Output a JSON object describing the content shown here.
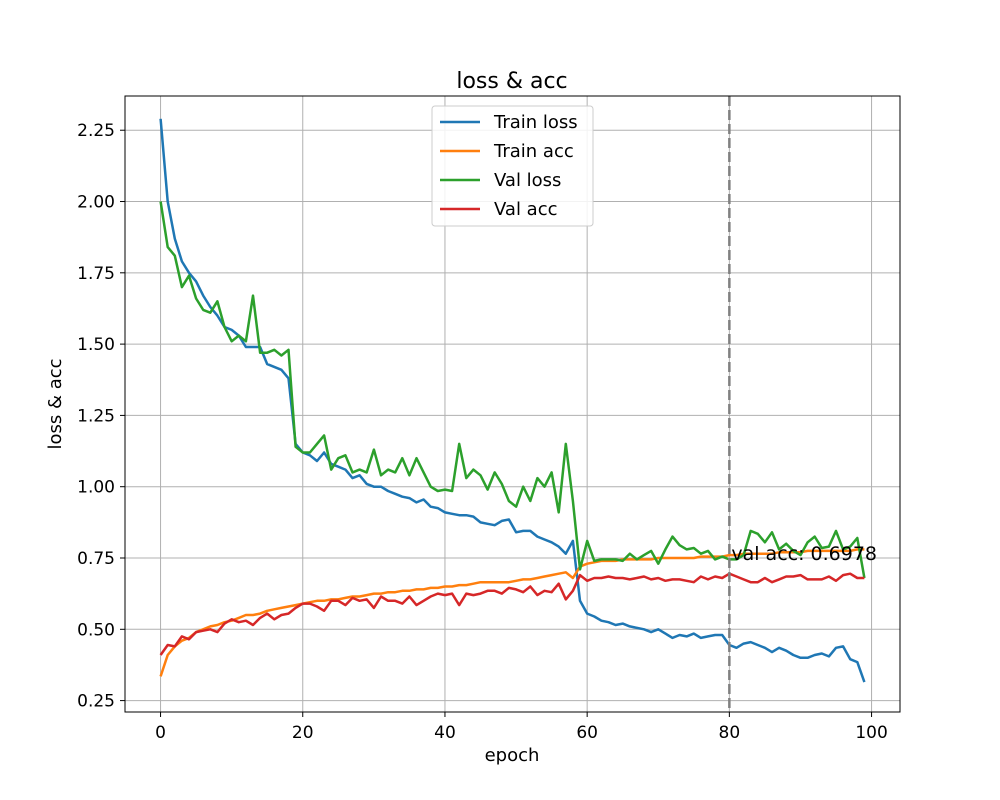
{
  "chart_data": {
    "type": "line",
    "title": "loss & acc",
    "xlabel": "epoch",
    "ylabel": "loss & acc",
    "xlim": [
      -5,
      104
    ],
    "ylim": [
      0.21,
      2.37
    ],
    "xticks": [
      0,
      20,
      40,
      60,
      80,
      100
    ],
    "xtick_labels": [
      "0",
      "20",
      "40",
      "60",
      "80",
      "100"
    ],
    "yticks": [
      0.25,
      0.5,
      0.75,
      1.0,
      1.25,
      1.5,
      1.75,
      2.0,
      2.25
    ],
    "ytick_labels": [
      "0.25",
      "0.50",
      "0.75",
      "1.00",
      "1.25",
      "1.50",
      "1.75",
      "2.00",
      "2.25"
    ],
    "grid": true,
    "legend_position": "top-center",
    "vline": {
      "x": 80,
      "color": "#808080",
      "style": "dashed"
    },
    "annotation": {
      "text": "val acc: 0.6978",
      "x": 80,
      "y": 0.75
    },
    "series": [
      {
        "name": "Train loss",
        "color": "#1f77b4",
        "values": [
          2.29,
          2.0,
          1.87,
          1.79,
          1.75,
          1.72,
          1.67,
          1.63,
          1.6,
          1.56,
          1.55,
          1.53,
          1.49,
          1.49,
          1.49,
          1.43,
          1.42,
          1.41,
          1.38,
          1.15,
          1.12,
          1.11,
          1.09,
          1.12,
          1.08,
          1.07,
          1.06,
          1.03,
          1.04,
          1.01,
          1.0,
          1.0,
          0.985,
          0.975,
          0.965,
          0.96,
          0.945,
          0.955,
          0.93,
          0.925,
          0.91,
          0.905,
          0.9,
          0.9,
          0.895,
          0.875,
          0.87,
          0.865,
          0.88,
          0.885,
          0.84,
          0.845,
          0.845,
          0.825,
          0.815,
          0.805,
          0.79,
          0.765,
          0.81,
          0.6,
          0.555,
          0.545,
          0.53,
          0.525,
          0.515,
          0.52,
          0.51,
          0.505,
          0.5,
          0.49,
          0.5,
          0.485,
          0.47,
          0.48,
          0.475,
          0.485,
          0.47,
          0.475,
          0.48,
          0.48,
          0.445,
          0.435,
          0.45,
          0.455,
          0.445,
          0.435,
          0.42,
          0.435,
          0.425,
          0.41,
          0.4,
          0.4,
          0.41,
          0.415,
          0.405,
          0.435,
          0.44,
          0.395,
          0.385,
          0.315
        ]
      },
      {
        "name": "Train acc",
        "color": "#ff7f0e",
        "values": [
          0.335,
          0.41,
          0.44,
          0.46,
          0.47,
          0.49,
          0.5,
          0.51,
          0.515,
          0.525,
          0.53,
          0.54,
          0.55,
          0.55,
          0.555,
          0.565,
          0.57,
          0.575,
          0.58,
          0.585,
          0.59,
          0.595,
          0.6,
          0.6,
          0.605,
          0.605,
          0.61,
          0.615,
          0.615,
          0.62,
          0.625,
          0.625,
          0.63,
          0.63,
          0.635,
          0.635,
          0.64,
          0.64,
          0.645,
          0.645,
          0.65,
          0.65,
          0.655,
          0.655,
          0.66,
          0.665,
          0.665,
          0.665,
          0.665,
          0.665,
          0.67,
          0.675,
          0.675,
          0.68,
          0.685,
          0.69,
          0.695,
          0.7,
          0.68,
          0.72,
          0.73,
          0.735,
          0.74,
          0.74,
          0.74,
          0.745,
          0.745,
          0.745,
          0.745,
          0.745,
          0.75,
          0.75,
          0.75,
          0.75,
          0.75,
          0.75,
          0.755,
          0.755,
          0.755,
          0.755,
          0.76,
          0.76,
          0.765,
          0.765,
          0.765,
          0.765,
          0.765,
          0.77,
          0.77,
          0.77,
          0.77,
          0.775,
          0.775,
          0.775,
          0.775,
          0.775,
          0.775,
          0.775,
          0.78,
          0.78
        ]
      },
      {
        "name": "Val loss",
        "color": "#2ca02c",
        "values": [
          2.0,
          1.84,
          1.81,
          1.7,
          1.74,
          1.66,
          1.62,
          1.61,
          1.65,
          1.56,
          1.51,
          1.53,
          1.51,
          1.67,
          1.47,
          1.47,
          1.48,
          1.46,
          1.48,
          1.14,
          1.12,
          1.12,
          1.15,
          1.18,
          1.06,
          1.1,
          1.11,
          1.05,
          1.06,
          1.05,
          1.13,
          1.04,
          1.06,
          1.05,
          1.1,
          1.04,
          1.1,
          1.05,
          1.0,
          0.985,
          0.99,
          0.985,
          1.15,
          1.03,
          1.06,
          1.04,
          0.99,
          1.05,
          1.01,
          0.95,
          0.93,
          1.0,
          0.95,
          1.03,
          1.0,
          1.05,
          0.91,
          1.15,
          0.95,
          0.71,
          0.81,
          0.74,
          0.745,
          0.745,
          0.745,
          0.74,
          0.765,
          0.745,
          0.76,
          0.775,
          0.73,
          0.78,
          0.825,
          0.795,
          0.78,
          0.785,
          0.765,
          0.775,
          0.745,
          0.755,
          0.745,
          0.745,
          0.76,
          0.845,
          0.835,
          0.805,
          0.84,
          0.78,
          0.8,
          0.775,
          0.76,
          0.805,
          0.825,
          0.785,
          0.79,
          0.845,
          0.78,
          0.79,
          0.82,
          0.68
        ]
      },
      {
        "name": "Val acc",
        "color": "#d62728",
        "values": [
          0.41,
          0.445,
          0.44,
          0.475,
          0.465,
          0.49,
          0.495,
          0.5,
          0.49,
          0.52,
          0.535,
          0.525,
          0.53,
          0.515,
          0.54,
          0.555,
          0.535,
          0.55,
          0.555,
          0.575,
          0.59,
          0.59,
          0.58,
          0.565,
          0.6,
          0.6,
          0.585,
          0.61,
          0.6,
          0.605,
          0.575,
          0.615,
          0.6,
          0.6,
          0.59,
          0.615,
          0.585,
          0.6,
          0.615,
          0.625,
          0.62,
          0.625,
          0.585,
          0.625,
          0.62,
          0.625,
          0.635,
          0.635,
          0.625,
          0.645,
          0.64,
          0.63,
          0.65,
          0.62,
          0.635,
          0.63,
          0.66,
          0.605,
          0.635,
          0.69,
          0.67,
          0.68,
          0.68,
          0.685,
          0.68,
          0.68,
          0.675,
          0.68,
          0.685,
          0.675,
          0.68,
          0.67,
          0.675,
          0.675,
          0.67,
          0.665,
          0.685,
          0.675,
          0.685,
          0.68,
          0.695,
          0.685,
          0.675,
          0.665,
          0.665,
          0.68,
          0.665,
          0.675,
          0.685,
          0.685,
          0.69,
          0.675,
          0.675,
          0.675,
          0.685,
          0.67,
          0.69,
          0.695,
          0.68,
          0.68
        ]
      }
    ]
  }
}
